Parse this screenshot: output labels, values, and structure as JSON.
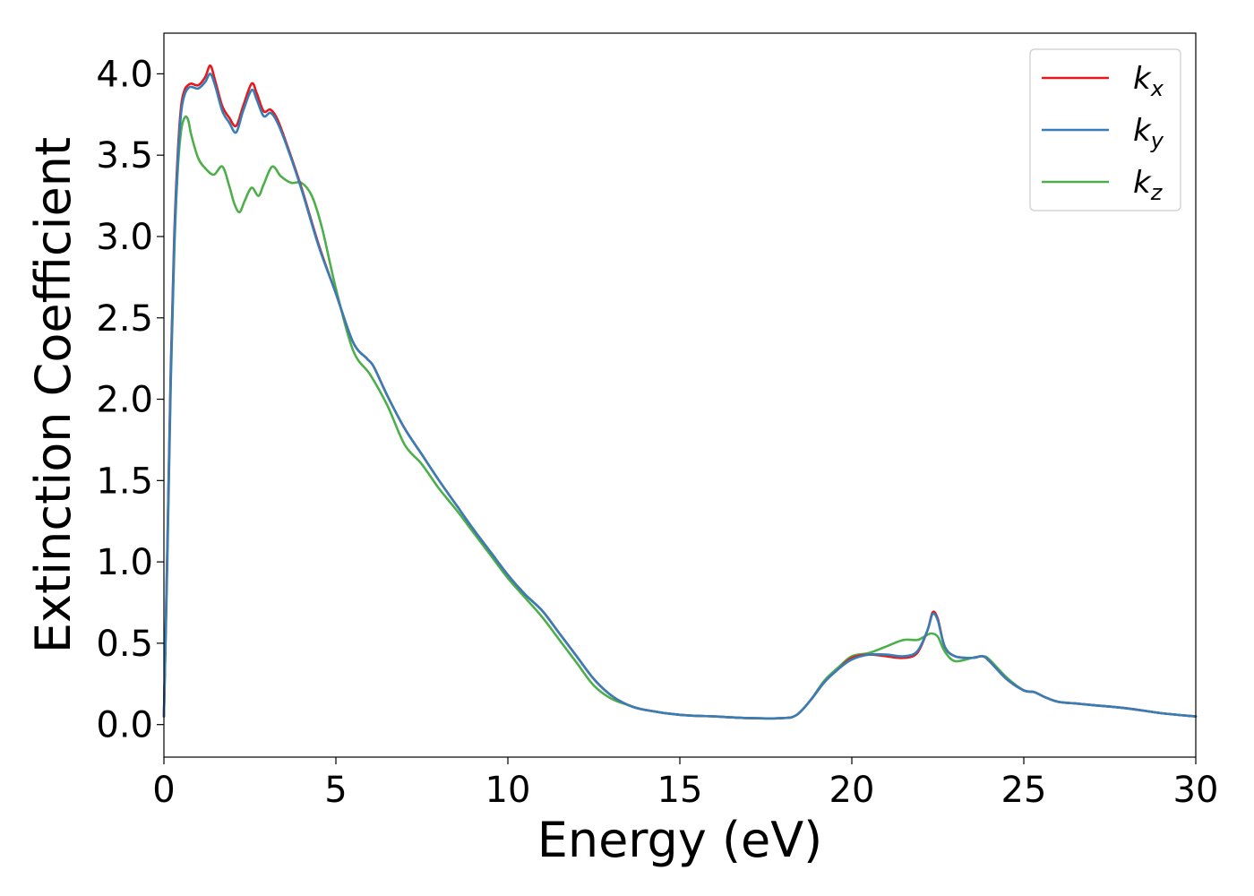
{
  "chart_data": {
    "type": "line",
    "title": "",
    "xlabel": "Energy (eV)",
    "ylabel": "Extinction Coefficient",
    "xlim": [
      0,
      30
    ],
    "ylim": [
      -0.2,
      4.25
    ],
    "xticks": [
      0,
      5,
      10,
      15,
      20,
      25,
      30
    ],
    "xtick_labels": [
      "0",
      "5",
      "10",
      "15",
      "20",
      "25",
      "30"
    ],
    "yticks": [
      0.0,
      0.5,
      1.0,
      1.5,
      2.0,
      2.5,
      3.0,
      3.5,
      4.0
    ],
    "ytick_labels": [
      "0.0",
      "0.5",
      "1.0",
      "1.5",
      "2.0",
      "2.5",
      "3.0",
      "3.5",
      "4.0"
    ],
    "grid": false,
    "legend_position": "top-right",
    "series": [
      {
        "name": "kx",
        "symbol": "k",
        "subscript": "x",
        "color": "#e41a1c",
        "x": [
          0,
          0.1,
          0.2,
          0.3,
          0.4,
          0.5,
          0.6,
          0.7,
          0.8,
          1.0,
          1.2,
          1.35,
          1.5,
          1.7,
          1.9,
          2.1,
          2.3,
          2.55,
          2.7,
          2.9,
          3.1,
          3.3,
          3.6,
          4.0,
          4.5,
          5.0,
          5.5,
          5.9,
          6.1,
          6.5,
          7.0,
          7.5,
          8.0,
          8.5,
          9.0,
          9.5,
          10.0,
          10.5,
          11.0,
          11.5,
          12.0,
          12.5,
          13.0,
          13.5,
          14.0,
          15.0,
          16.0,
          17.0,
          18.0,
          18.4,
          18.8,
          19.2,
          19.6,
          20.0,
          20.5,
          21.0,
          21.5,
          21.9,
          22.2,
          22.35,
          22.5,
          22.7,
          23.0,
          23.5,
          23.8,
          24.0,
          24.5,
          25.0,
          25.3,
          25.6,
          26.0,
          26.5,
          27.0,
          28.0,
          29.0,
          30.0
        ],
        "y": [
          0.05,
          1.1,
          2.2,
          3.0,
          3.5,
          3.8,
          3.9,
          3.93,
          3.94,
          3.93,
          3.98,
          4.05,
          3.95,
          3.8,
          3.73,
          3.68,
          3.8,
          3.94,
          3.88,
          3.77,
          3.78,
          3.72,
          3.55,
          3.3,
          2.95,
          2.65,
          2.35,
          2.25,
          2.2,
          2.02,
          1.82,
          1.66,
          1.5,
          1.35,
          1.2,
          1.06,
          0.92,
          0.8,
          0.7,
          0.56,
          0.42,
          0.28,
          0.18,
          0.12,
          0.09,
          0.06,
          0.05,
          0.04,
          0.04,
          0.06,
          0.15,
          0.26,
          0.34,
          0.41,
          0.43,
          0.42,
          0.41,
          0.44,
          0.58,
          0.69,
          0.65,
          0.48,
          0.42,
          0.41,
          0.42,
          0.39,
          0.28,
          0.21,
          0.2,
          0.17,
          0.14,
          0.13,
          0.12,
          0.1,
          0.07,
          0.05
        ]
      },
      {
        "name": "ky",
        "symbol": "k",
        "subscript": "y",
        "color": "#377eb8",
        "x": [
          0,
          0.1,
          0.2,
          0.3,
          0.4,
          0.5,
          0.6,
          0.7,
          0.8,
          1.0,
          1.2,
          1.35,
          1.5,
          1.7,
          1.9,
          2.1,
          2.3,
          2.55,
          2.7,
          2.9,
          3.1,
          3.3,
          3.6,
          4.0,
          4.5,
          5.0,
          5.5,
          5.9,
          6.1,
          6.5,
          7.0,
          7.5,
          8.0,
          8.5,
          9.0,
          9.5,
          10.0,
          10.5,
          11.0,
          11.5,
          12.0,
          12.5,
          13.0,
          13.5,
          14.0,
          15.0,
          16.0,
          17.0,
          18.0,
          18.4,
          18.8,
          19.2,
          19.6,
          20.0,
          20.5,
          21.0,
          21.5,
          21.9,
          22.2,
          22.35,
          22.5,
          22.7,
          23.0,
          23.5,
          23.8,
          24.0,
          24.5,
          25.0,
          25.3,
          25.6,
          26.0,
          26.5,
          27.0,
          28.0,
          29.0,
          30.0
        ],
        "y": [
          0.05,
          1.08,
          2.15,
          2.95,
          3.45,
          3.76,
          3.87,
          3.91,
          3.92,
          3.91,
          3.95,
          4.0,
          3.92,
          3.77,
          3.7,
          3.64,
          3.77,
          3.9,
          3.84,
          3.74,
          3.76,
          3.7,
          3.54,
          3.29,
          2.94,
          2.65,
          2.35,
          2.25,
          2.2,
          2.02,
          1.82,
          1.66,
          1.5,
          1.35,
          1.2,
          1.06,
          0.92,
          0.8,
          0.7,
          0.56,
          0.42,
          0.28,
          0.18,
          0.12,
          0.09,
          0.06,
          0.05,
          0.04,
          0.04,
          0.06,
          0.15,
          0.26,
          0.34,
          0.4,
          0.43,
          0.43,
          0.42,
          0.45,
          0.58,
          0.68,
          0.64,
          0.48,
          0.42,
          0.41,
          0.42,
          0.39,
          0.28,
          0.21,
          0.2,
          0.17,
          0.14,
          0.13,
          0.12,
          0.1,
          0.07,
          0.05
        ]
      },
      {
        "name": "kz",
        "symbol": "k",
        "subscript": "z",
        "color": "#4daf4a",
        "x": [
          0,
          0.1,
          0.2,
          0.3,
          0.4,
          0.5,
          0.6,
          0.7,
          0.8,
          1.0,
          1.2,
          1.45,
          1.7,
          1.9,
          2.05,
          2.2,
          2.35,
          2.55,
          2.75,
          2.9,
          3.15,
          3.4,
          3.7,
          4.0,
          4.3,
          4.6,
          5.0,
          5.5,
          6.0,
          6.5,
          7.0,
          7.5,
          8.0,
          8.5,
          9.0,
          9.5,
          10.0,
          10.5,
          11.0,
          11.5,
          12.0,
          12.5,
          13.0,
          13.5,
          14.0,
          15.0,
          16.0,
          17.0,
          18.0,
          18.4,
          18.8,
          19.2,
          19.6,
          20.0,
          20.5,
          21.0,
          21.5,
          21.9,
          22.1,
          22.3,
          22.5,
          22.7,
          23.0,
          23.5,
          23.8,
          24.0,
          24.5,
          25.0,
          25.3,
          25.6,
          26.0,
          26.5,
          27.0,
          28.0,
          29.0,
          30.0
        ],
        "y": [
          0.05,
          1.0,
          2.1,
          2.9,
          3.4,
          3.65,
          3.73,
          3.72,
          3.62,
          3.48,
          3.42,
          3.38,
          3.43,
          3.31,
          3.2,
          3.15,
          3.22,
          3.3,
          3.25,
          3.32,
          3.43,
          3.37,
          3.33,
          3.33,
          3.25,
          3.05,
          2.68,
          2.3,
          2.15,
          1.96,
          1.72,
          1.6,
          1.45,
          1.32,
          1.18,
          1.04,
          0.9,
          0.78,
          0.66,
          0.52,
          0.38,
          0.24,
          0.16,
          0.12,
          0.09,
          0.06,
          0.05,
          0.04,
          0.04,
          0.06,
          0.15,
          0.27,
          0.35,
          0.42,
          0.44,
          0.48,
          0.52,
          0.52,
          0.54,
          0.56,
          0.54,
          0.45,
          0.39,
          0.41,
          0.42,
          0.4,
          0.29,
          0.21,
          0.2,
          0.17,
          0.14,
          0.13,
          0.12,
          0.1,
          0.07,
          0.05
        ]
      }
    ]
  }
}
